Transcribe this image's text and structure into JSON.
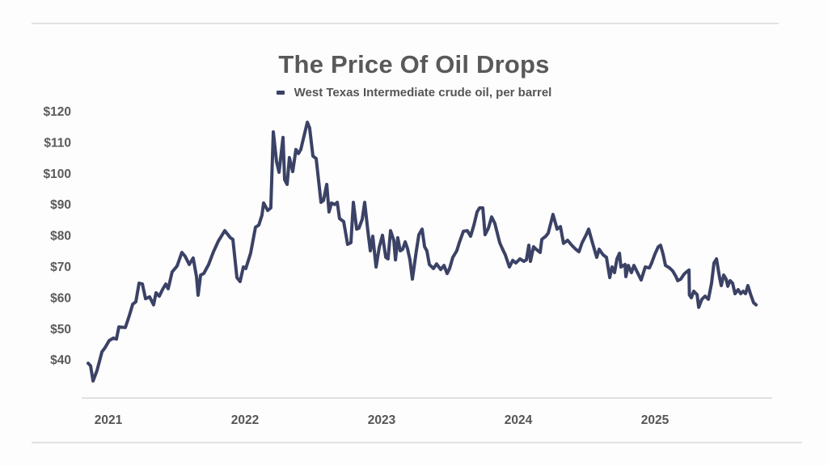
{
  "chart_data": {
    "type": "line",
    "title": "The Price Of Oil Drops",
    "legend": {
      "position": "top-center",
      "entries": [
        {
          "label": "West Texas Intermediate crude oil, per barrel",
          "color": "#3b4266"
        }
      ]
    },
    "xlabel": "",
    "ylabel": "",
    "x_ticks": [
      {
        "value": 2021,
        "label": "2021"
      },
      {
        "value": 2022,
        "label": "2022"
      },
      {
        "value": 2023,
        "label": "2023"
      },
      {
        "value": 2024,
        "label": "2024"
      },
      {
        "value": 2025,
        "label": "2025"
      }
    ],
    "y_ticks": [
      {
        "value": 40,
        "label": "$40"
      },
      {
        "value": 50,
        "label": "$50"
      },
      {
        "value": 60,
        "label": "$60"
      },
      {
        "value": 70,
        "label": "$70"
      },
      {
        "value": 80,
        "label": "$80"
      },
      {
        "value": 90,
        "label": "$90"
      },
      {
        "value": 100,
        "label": "$100"
      },
      {
        "value": 110,
        "label": "$110"
      },
      {
        "value": 120,
        "label": "$120"
      }
    ],
    "xlim": [
      2020.8,
      2025.85
    ],
    "ylim": [
      28,
      120
    ],
    "grid": false,
    "series": [
      {
        "name": "West Texas Intermediate crude oil, per barrel",
        "color": "#3b4266",
        "x": [
          2020.852,
          2020.87,
          2020.888,
          2020.917,
          2020.953,
          2020.976,
          2021.006,
          2021.036,
          2021.059,
          2021.077,
          2021.124,
          2021.154,
          2021.178,
          2021.201,
          2021.225,
          2021.249,
          2021.272,
          2021.302,
          2021.331,
          2021.349,
          2021.373,
          2021.396,
          2021.42,
          2021.438,
          2021.467,
          2021.503,
          2021.538,
          2021.562,
          2021.592,
          2021.621,
          2021.645,
          2021.657,
          2021.675,
          2021.698,
          2021.734,
          2021.769,
          2021.805,
          2021.852,
          2021.893,
          2021.911,
          2021.941,
          2021.964,
          2021.988,
          2022.006,
          2022.041,
          2022.077,
          2022.101,
          2022.124,
          2022.136,
          2022.166,
          2022.189,
          2022.207,
          2022.231,
          2022.249,
          2022.278,
          2022.29,
          2022.308,
          2022.325,
          2022.349,
          2022.373,
          2022.391,
          2022.408,
          2022.426,
          2022.456,
          2022.473,
          2022.497,
          2022.521,
          2022.556,
          2022.574,
          2022.598,
          2022.615,
          2022.633,
          2022.657,
          2022.675,
          2022.692,
          2022.722,
          2022.751,
          2022.775,
          2022.793,
          2022.817,
          2022.834,
          2022.858,
          2022.876,
          2022.899,
          2022.917,
          2022.935,
          2022.959,
          2022.982,
          2023.006,
          2023.03,
          2023.047,
          2023.065,
          2023.089,
          2023.101,
          2023.118,
          2023.136,
          2023.154,
          2023.172,
          2023.189,
          2023.207,
          2023.225,
          2023.254,
          2023.272,
          2023.296,
          2023.314,
          2023.331,
          2023.349,
          2023.379,
          2023.402,
          2023.432,
          2023.456,
          2023.479,
          2023.497,
          2023.521,
          2023.55,
          2023.568,
          2023.598,
          2023.627,
          2023.651,
          2023.675,
          2023.698,
          2023.716,
          2023.74,
          2023.757,
          2023.781,
          2023.805,
          2023.828,
          2023.864,
          2023.882,
          2023.905,
          2023.935,
          2023.959,
          2023.982,
          2024.012,
          2024.041,
          2024.059,
          2024.077,
          2024.089,
          2024.112,
          2024.13,
          2024.16,
          2024.172,
          2024.201,
          2024.219,
          2024.254,
          2024.284,
          2024.308,
          2024.331,
          2024.361,
          2024.391,
          2024.42,
          2024.444,
          2024.467,
          2024.497,
          2024.515,
          2024.544,
          2024.574,
          2024.592,
          2024.621,
          2024.645,
          2024.669,
          2024.686,
          2024.704,
          2024.722,
          2024.74,
          2024.751,
          2024.781,
          2024.787,
          2024.805,
          2024.828,
          2024.846,
          2024.876,
          2024.899,
          2024.929,
          2024.959,
          2024.976,
          2025.0,
          2025.024,
          2025.041,
          2025.059,
          2025.077,
          2025.107,
          2025.13,
          2025.154,
          2025.166,
          2025.189,
          2025.213,
          2025.231,
          2025.249,
          2025.252,
          2025.266,
          2025.284,
          2025.308,
          2025.32,
          2025.343,
          2025.367,
          2025.391,
          2025.414,
          2025.432,
          2025.45,
          2025.473,
          2025.485,
          2025.503,
          2025.521,
          2025.533,
          2025.55,
          2025.568,
          2025.586,
          2025.609,
          2025.627,
          2025.645,
          2025.663,
          2025.68,
          2025.698,
          2025.722,
          2025.74
        ],
        "y": [
          39.0,
          38.2,
          33.3,
          36.7,
          42.7,
          44.0,
          46.3,
          47.1,
          46.8,
          50.7,
          50.5,
          54.4,
          58.0,
          58.8,
          64.8,
          64.5,
          59.8,
          60.4,
          57.8,
          61.7,
          60.6,
          62.7,
          64.5,
          63.0,
          68.4,
          70.3,
          74.7,
          73.4,
          70.8,
          72.9,
          66.9,
          60.9,
          67.4,
          67.9,
          70.8,
          74.9,
          78.3,
          81.7,
          79.4,
          78.9,
          66.6,
          65.3,
          70.0,
          69.5,
          74.4,
          82.8,
          83.5,
          86.7,
          90.6,
          88.2,
          89.0,
          113.5,
          103.9,
          100.5,
          111.7,
          98.1,
          96.6,
          105.2,
          100.7,
          107.8,
          106.5,
          107.8,
          111.1,
          116.6,
          114.8,
          105.7,
          104.9,
          90.8,
          91.4,
          96.6,
          87.7,
          90.6,
          90.1,
          90.8,
          85.6,
          84.6,
          77.3,
          77.8,
          90.8,
          82.2,
          82.5,
          85.4,
          90.8,
          81.7,
          75.2,
          79.9,
          70.0,
          76.3,
          80.2,
          73.1,
          72.6,
          81.7,
          78.6,
          72.3,
          79.4,
          75.2,
          75.7,
          78.1,
          76.0,
          72.3,
          66.1,
          75.2,
          80.4,
          82.2,
          76.5,
          75.2,
          70.8,
          69.5,
          71.0,
          69.2,
          70.5,
          67.9,
          69.5,
          73.1,
          75.2,
          77.8,
          81.5,
          81.7,
          79.9,
          83.5,
          87.7,
          89.0,
          89.0,
          80.4,
          82.5,
          86.1,
          84.1,
          77.8,
          76.0,
          73.9,
          70.0,
          72.1,
          71.3,
          72.6,
          71.8,
          72.3,
          77.0,
          71.8,
          76.5,
          75.7,
          74.7,
          78.9,
          79.9,
          80.9,
          86.9,
          82.2,
          83.0,
          77.6,
          78.6,
          77.0,
          75.7,
          74.9,
          77.8,
          80.4,
          82.2,
          77.6,
          73.1,
          75.7,
          73.9,
          73.1,
          66.6,
          70.0,
          68.2,
          72.6,
          74.4,
          70.0,
          70.8,
          66.9,
          70.5,
          68.2,
          70.5,
          67.9,
          65.8,
          70.0,
          69.7,
          71.3,
          74.2,
          76.5,
          77.0,
          74.2,
          70.5,
          69.7,
          68.7,
          66.9,
          65.6,
          66.1,
          67.7,
          68.4,
          69.0,
          61.0,
          60.1,
          62.2,
          61.1,
          57.0,
          59.6,
          60.6,
          59.6,
          64.8,
          71.3,
          72.6,
          66.6,
          64.0,
          67.4,
          66.1,
          63.8,
          65.6,
          64.8,
          61.4,
          62.7,
          61.4,
          62.2,
          61.4,
          64.0,
          61.4,
          58.5,
          57.8
        ]
      }
    ]
  }
}
